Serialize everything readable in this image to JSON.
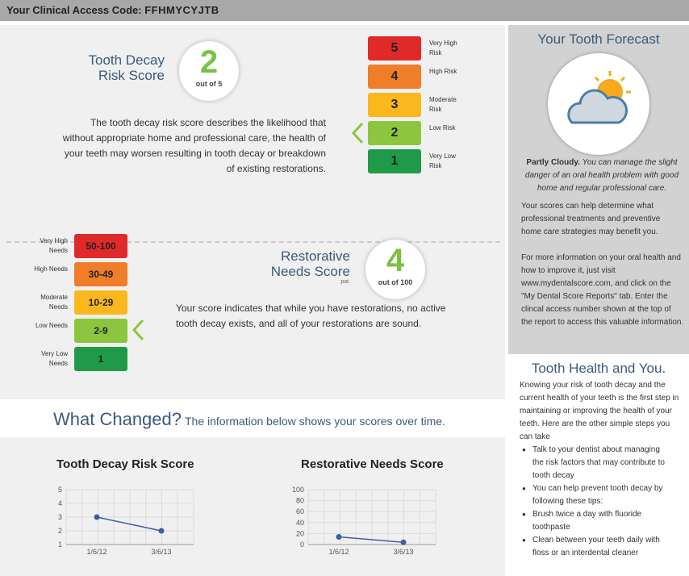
{
  "header": {
    "code_label": "Your Clinical Access Code:",
    "code_value": "FFHMYCYJTB"
  },
  "decay": {
    "title_line1": "Tooth Decay",
    "title_line2": "Risk Score",
    "score": "2",
    "score_sub": "out of 5",
    "description": "The tooth decay risk score describes the likelihood that without appropriate home and professional care, the health of your teeth may worsen resulting in tooth decay or breakdown of existing restorations.",
    "levels": [
      {
        "value": "5",
        "label": "Very High Risk",
        "color": "#e02a2a"
      },
      {
        "value": "4",
        "label": "High Risk",
        "color": "#f07d28"
      },
      {
        "value": "3",
        "label": "Moderate Risk",
        "color": "#fbb71e"
      },
      {
        "value": "2",
        "label": "Low Risk",
        "color": "#8cc63f"
      },
      {
        "value": "1",
        "label": "Very Low Risk",
        "color": "#1f9a48"
      }
    ],
    "selected_index": 3
  },
  "restorative": {
    "title_line1": "Restorative",
    "title_line2": "Needs Score",
    "title_note": "pat.",
    "score": "4",
    "score_sub": "out of 100",
    "description": "Your score indicates that while you have restorations, no active tooth decay exists, and all of your restorations are sound.",
    "levels": [
      {
        "value": "50-100",
        "label": "Very High Needs",
        "color": "#e02a2a"
      },
      {
        "value": "30-49",
        "label": "High Needs",
        "color": "#f07d28"
      },
      {
        "value": "10-29",
        "label": "Moderate Needs",
        "color": "#fbb71e"
      },
      {
        "value": "2-9",
        "label": "Low Needs",
        "color": "#8cc63f"
      },
      {
        "value": "1",
        "label": "Very Low Needs",
        "color": "#1f9a48"
      }
    ],
    "selected_index": 3
  },
  "what_changed": {
    "heading": "What Changed?",
    "subtitle": "The information below shows your scores over time."
  },
  "chart_data": [
    {
      "type": "line",
      "title": "Tooth Decay Risk Score",
      "x": [
        "1/6/12",
        "3/6/13"
      ],
      "values": [
        3,
        2
      ],
      "ylim": [
        1,
        5
      ],
      "yticks": [
        1,
        2,
        3,
        4,
        5
      ],
      "grid": true
    },
    {
      "type": "line",
      "title": "Restorative Needs Score",
      "x": [
        "1/6/12",
        "3/6/13"
      ],
      "values": [
        14,
        4
      ],
      "ylim": [
        0,
        100
      ],
      "yticks": [
        0,
        20,
        40,
        60,
        80,
        100
      ],
      "grid": true
    }
  ],
  "sidebar": {
    "forecast_title": "Your Tooth Forecast",
    "forecast_icon": "partly-cloudy-icon",
    "forecast_lead": "Partly Cloudy.",
    "forecast_text": "You can manage the slight danger of an oral health problem with good home and regular professional care.",
    "para1": "Your scores can help determine what professional treatments and preventive home care strategies may benefit you.",
    "para2": "For more information on your oral health and how to improve it, just visit www.mydentalscore.com, and click on the \"My Dental Score Reports\" tab. Enter the clincal access number shown at the top of the report to access this valuable information.",
    "health_title": "Tooth Health and You.",
    "health_intro": "Knowing your risk of tooth decay and the current health of your teeth is the first step in maintaining or improving the health of your teeth. Here are the other simple steps you can take",
    "health_items": [
      "Talk to your dentist about managing the risk factors that may contribute to tooth decay",
      "You can help prevent tooth decay by following these tips:",
      "Brush twice a day with fluoride toothpaste",
      "Clean between your teeth daily with floss or an interdental cleaner"
    ]
  }
}
